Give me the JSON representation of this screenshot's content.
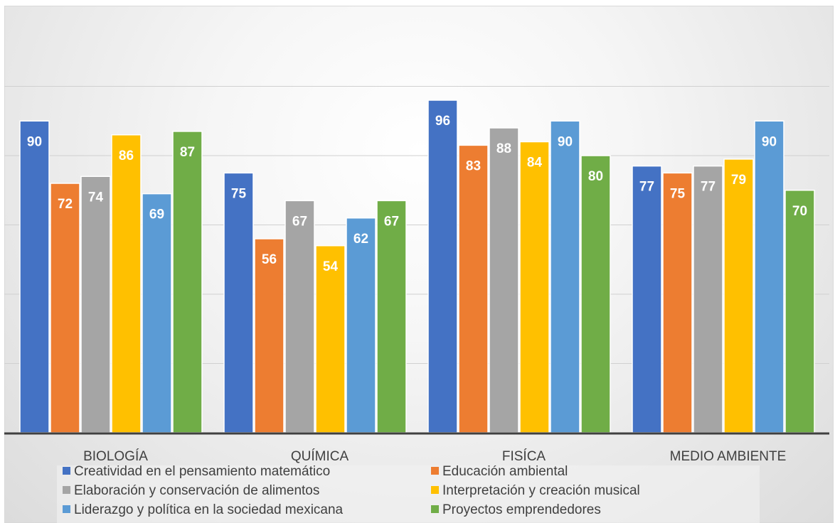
{
  "chart_data": {
    "type": "bar",
    "categories": [
      "BIOLOGÍA",
      "QUÍMICA",
      "FISÍCA",
      "MEDIO AMBIENTE"
    ],
    "series": [
      {
        "name": "Creatividad en el pensamiento matemático",
        "color": "#4472C4",
        "values": [
          90,
          75,
          96,
          77
        ]
      },
      {
        "name": "Educación ambiental",
        "color": "#ED7D31",
        "values": [
          72,
          56,
          83,
          75
        ]
      },
      {
        "name": "Elaboración y conservación de alimentos",
        "color": "#A5A5A5",
        "values": [
          74,
          67,
          88,
          77
        ]
      },
      {
        "name": "Interpretación y creación musical",
        "color": "#FFC000",
        "values": [
          86,
          54,
          84,
          79
        ]
      },
      {
        "name": "Liderazgo y política en la sociedad mexicana",
        "color": "#5B9BD5",
        "values": [
          69,
          62,
          90,
          90
        ]
      },
      {
        "name": "Proyectos emprendedores",
        "color": "#70AD47",
        "values": [
          87,
          67,
          80,
          70
        ]
      }
    ],
    "ylim": [
      0,
      120
    ],
    "grid": true,
    "legend": "bottom",
    "data_labels": true
  }
}
